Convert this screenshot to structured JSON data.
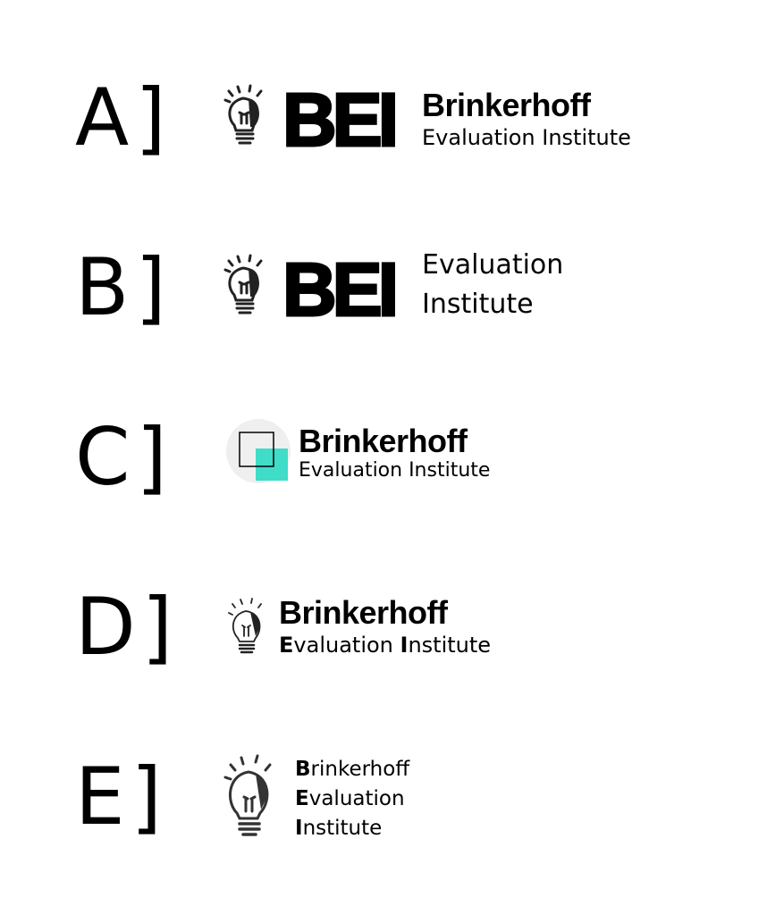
{
  "options": [
    {
      "letter": "A",
      "bracket": "]",
      "mark": "BEI",
      "line1": "Brinkerhoff",
      "line2": "Evaluation Institute"
    },
    {
      "letter": "B",
      "bracket": "]",
      "mark": "BEI",
      "line1": "Evaluation",
      "line2": "Institute"
    },
    {
      "letter": "C",
      "bracket": "]",
      "line1": "Brinkerhoff",
      "line2": "Evaluation Institute"
    },
    {
      "letter": "D",
      "bracket": "]",
      "line1": "Brinkerhoff",
      "line2_initial_e": "E",
      "line2_rest_e": "valuation ",
      "line2_initial_i": "I",
      "line2_rest_i": "nstitute"
    },
    {
      "letter": "E",
      "bracket": "]",
      "words": [
        {
          "initial": "B",
          "rest": "rinkerhoff"
        },
        {
          "initial": "E",
          "rest": "valuation"
        },
        {
          "initial": "I",
          "rest": "nstitute"
        }
      ]
    }
  ],
  "colors": {
    "text": "#000000",
    "accent": "#3fdcc8",
    "bulb": "#222222",
    "circle": "#efefef"
  },
  "icons": [
    "lightbulb-icon",
    "squares-icon"
  ]
}
